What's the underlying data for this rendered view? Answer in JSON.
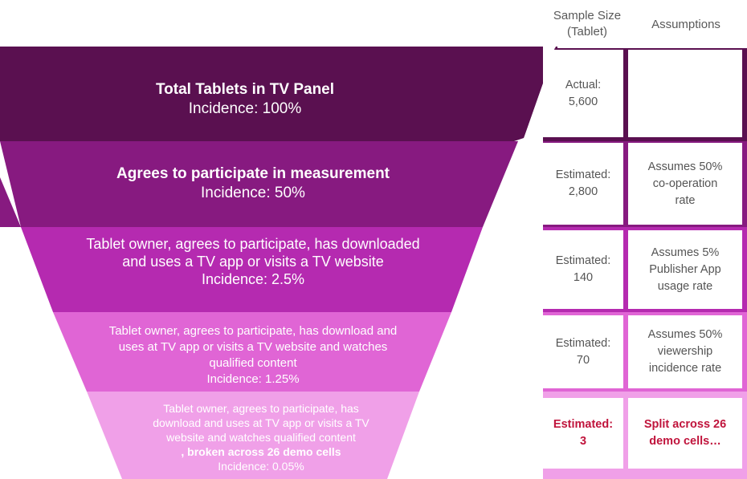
{
  "headers": {
    "sample_size_line1": "Sample Size",
    "sample_size_line2": "(Tablet)",
    "assumptions": "Assumptions"
  },
  "stages": [
    {
      "title": "Total Tablets in TV Panel",
      "incidence": "Incidence: 100%",
      "color": "#5a1050",
      "sample_label": "Actual:",
      "sample_value": "5,600",
      "assumption_lines": []
    },
    {
      "title": "Agrees to participate in measurement",
      "incidence": "Incidence: 50%",
      "color": "#871a80",
      "sample_label": "Estimated:",
      "sample_value": "2,800",
      "assumption_lines": [
        "Assumes 50%",
        "co-operation",
        "rate"
      ]
    },
    {
      "title_lines": [
        "Tablet owner, agrees to participate, has downloaded",
        "and uses a TV app or visits a TV website"
      ],
      "incidence": "Incidence: 2.5%",
      "color": "#b52ab0",
      "sample_label": "Estimated:",
      "sample_value": "140",
      "assumption_lines": [
        "Assumes 5%",
        "Publisher App",
        "usage rate"
      ]
    },
    {
      "title_lines": [
        "Tablet owner, agrees to participate, has download and",
        "uses at TV app or  visits a TV website and watches",
        "qualified content"
      ],
      "incidence": "Incidence: 1.25%",
      "color": "#e065d5",
      "sample_label": "Estimated:",
      "sample_value": "70",
      "assumption_lines": [
        "Assumes 50%",
        "viewership",
        "incidence rate"
      ]
    },
    {
      "title_lines": [
        "Tablet owner, agrees to participate, has",
        "download and uses at TV app or  visits a TV",
        "website and watches qualified content"
      ],
      "title_bold": ", broken across 26 demo cells",
      "incidence": "Incidence: 0.05%",
      "color": "#f0a0e8",
      "sample_label": "Estimated:",
      "sample_value": "3",
      "assumption_lines": [
        "Split across 26",
        "demo cells…"
      ],
      "highlight_color": "#c0143c"
    }
  ]
}
